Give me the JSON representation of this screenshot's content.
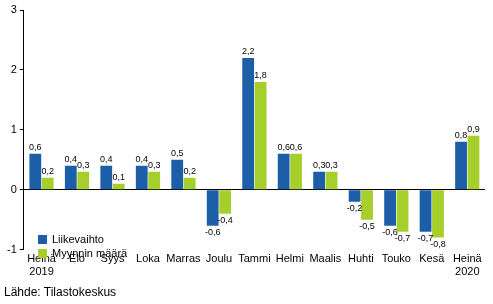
{
  "chart_data": {
    "type": "bar",
    "categories": [
      "Heinä 2019",
      "Elo",
      "Syys",
      "Loka",
      "Marras",
      "Joulu",
      "Tammi",
      "Helmi",
      "Maalis",
      "Huhti",
      "Touko",
      "Kesä",
      "Heinä 2020"
    ],
    "series": [
      {
        "name": "Liikevaihto",
        "color": "#1c5ea8",
        "values": [
          0.6,
          0.4,
          0.4,
          0.4,
          0.5,
          -0.6,
          2.2,
          0.6,
          0.3,
          -0.2,
          -0.6,
          -0.7,
          0.8
        ],
        "value_labels": [
          "0,6",
          "0,4",
          "0,4",
          "0,4",
          "0,5",
          "-0,6",
          "2,2",
          "0,6",
          "0,3",
          "-0,2",
          "-0,6",
          "-0,7",
          "0,8"
        ]
      },
      {
        "name": "Myynnin määrä",
        "color": "#a6cf2c",
        "values": [
          0.2,
          0.3,
          0.1,
          0.3,
          0.2,
          -0.4,
          1.8,
          0.6,
          0.3,
          -0.5,
          -0.7,
          -0.8,
          0.9
        ],
        "value_labels": [
          "0,2",
          "0,3",
          "0,1",
          "0,3",
          "0,2",
          "-0,4",
          "1,8",
          "0,6",
          "0,3",
          "-0,5",
          "-0,7",
          "-0,8",
          "0,9"
        ]
      }
    ],
    "ylim": [
      -1,
      3
    ],
    "yticks": [
      -1,
      0,
      1,
      2,
      3
    ],
    "grid": false,
    "legend": "lower left",
    "data_labels": true,
    "note": "Lähde: Tilastokeskus"
  }
}
